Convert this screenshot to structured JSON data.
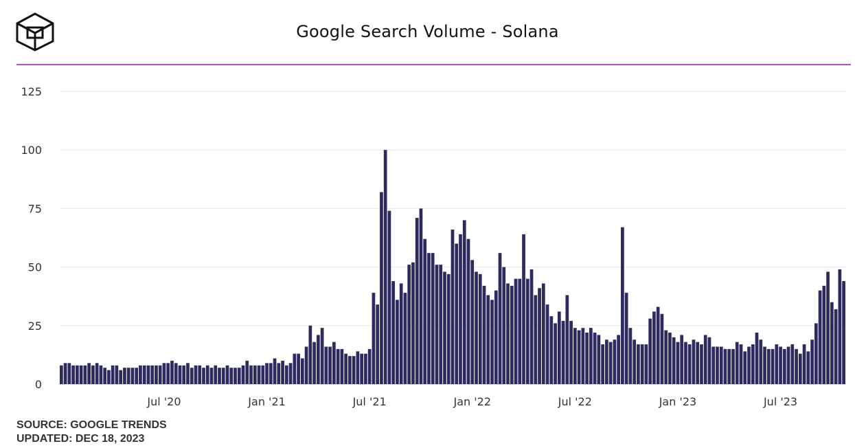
{
  "title": "Google Search Volume - Solana",
  "footer": {
    "source": "SOURCE: GOOGLE TRENDS",
    "updated": "UPDATED: DEC 18, 2023"
  },
  "logo": {
    "icon": "block-cube-logo"
  },
  "colors": {
    "bar": "#2d2a5e",
    "divider": "#b05ac8",
    "grid": "#e6e6e6"
  },
  "chart_data": {
    "type": "bar",
    "title": "Google Search Volume - Solana",
    "xlabel": "",
    "ylabel": "",
    "ylim": [
      0,
      125
    ],
    "yticks": [
      0,
      25,
      50,
      75,
      100,
      125
    ],
    "xtick_labels": [
      "Jul '20",
      "Jan '21",
      "Jul '21",
      "Jan '22",
      "Jul '22",
      "Jan '23",
      "Jul '23"
    ],
    "xtick_bar_index": [
      26,
      52,
      78,
      104,
      130,
      156,
      182
    ],
    "grid": true,
    "legend": "none",
    "values": [
      8,
      9,
      9,
      8,
      8,
      8,
      8,
      9,
      8,
      9,
      8,
      7,
      6,
      8,
      8,
      6,
      7,
      7,
      7,
      7,
      8,
      8,
      8,
      8,
      8,
      8,
      9,
      9,
      10,
      9,
      8,
      8,
      9,
      7,
      8,
      8,
      7,
      8,
      7,
      8,
      7,
      7,
      8,
      7,
      7,
      7,
      8,
      10,
      8,
      8,
      8,
      8,
      9,
      9,
      11,
      9,
      10,
      8,
      9,
      13,
      13,
      11,
      16,
      25,
      18,
      21,
      24,
      16,
      16,
      18,
      15,
      15,
      13,
      12,
      12,
      14,
      13,
      13,
      15,
      39,
      34,
      82,
      100,
      74,
      44,
      36,
      43,
      39,
      51,
      52,
      71,
      75,
      62,
      56,
      56,
      51,
      51,
      48,
      47,
      66,
      60,
      64,
      70,
      62,
      53,
      48,
      47,
      42,
      38,
      36,
      40,
      56,
      50,
      43,
      42,
      45,
      45,
      64,
      45,
      49,
      38,
      41,
      43,
      34,
      29,
      26,
      31,
      27,
      38,
      27,
      24,
      23,
      24,
      22,
      24,
      22,
      21,
      17,
      19,
      18,
      19,
      21,
      67,
      39,
      24,
      19,
      17,
      17,
      17,
      28,
      31,
      33,
      30,
      23,
      22,
      20,
      18,
      21,
      18,
      17,
      19,
      18,
      17,
      21,
      20,
      16,
      16,
      16,
      15,
      15,
      15,
      18,
      17,
      14,
      16,
      17,
      22,
      19,
      16,
      15,
      15,
      17,
      16,
      15,
      16,
      17,
      15,
      13,
      17,
      14,
      19,
      26,
      40,
      42,
      48,
      35,
      32,
      49,
      44
    ]
  }
}
